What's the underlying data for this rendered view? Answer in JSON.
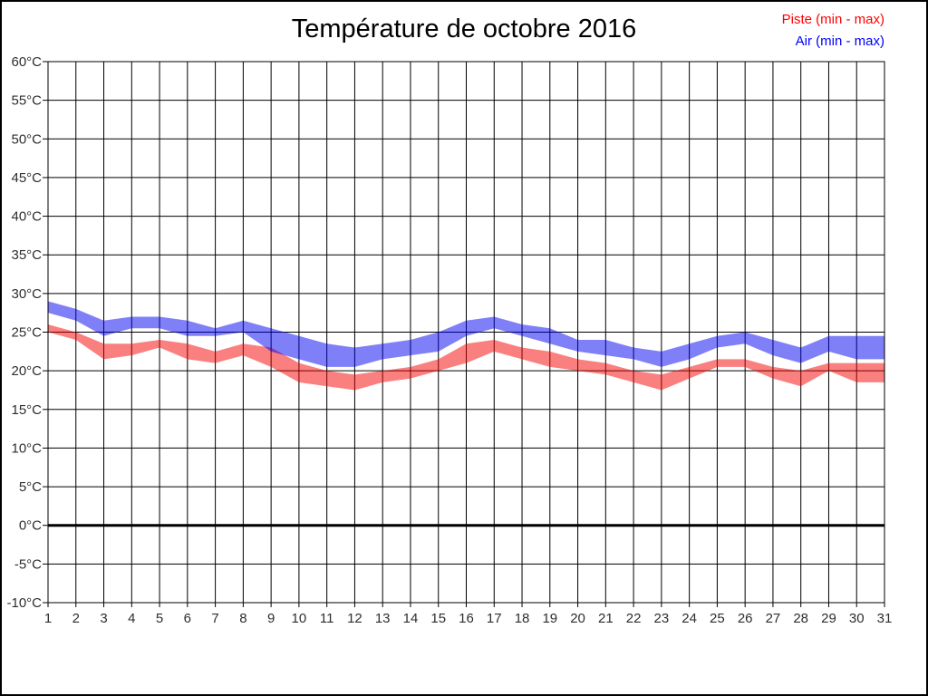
{
  "chart_data": {
    "type": "area",
    "subtype": "min-max-band",
    "title": "Température de octobre 2016",
    "legend": [
      {
        "label": "Piste (min - max)",
        "color": "#ff0000"
      },
      {
        "label": "Air (min - max)",
        "color": "#0000ff"
      }
    ],
    "xlabel": "",
    "ylabel": "",
    "x_tick_labels": [
      1,
      2,
      3,
      4,
      5,
      6,
      7,
      8,
      9,
      10,
      11,
      12,
      13,
      14,
      15,
      16,
      17,
      18,
      19,
      20,
      21,
      22,
      23,
      24,
      25,
      26,
      27,
      28,
      29,
      30,
      31
    ],
    "y_axis": {
      "min": -10,
      "max": 60,
      "step": 5,
      "unit": "°C",
      "bold_zero_line": true
    },
    "grid": true,
    "legend_position": "top-right",
    "series": [
      {
        "name": "Piste",
        "fill": "#f50000",
        "opacity": 0.5,
        "min": [
          25,
          24,
          21.5,
          22,
          23,
          21.5,
          21,
          22,
          20.5,
          18.5,
          18,
          17.5,
          18.5,
          19,
          20,
          21,
          22.5,
          21.5,
          20.5,
          20,
          19.5,
          18.5,
          17.5,
          19,
          20.5,
          20.5,
          19,
          18,
          20,
          18.5,
          18.5
        ],
        "max": [
          26,
          25,
          23.5,
          23.5,
          24,
          23.5,
          22.5,
          23.5,
          23,
          21,
          20,
          19.5,
          20,
          20.5,
          21.5,
          23.5,
          24,
          23,
          22.5,
          21.5,
          21,
          20,
          19.5,
          20.5,
          21.5,
          21.5,
          20.5,
          20,
          21,
          21,
          21
        ]
      },
      {
        "name": "Air",
        "fill": "#0000f0",
        "opacity": 0.5,
        "min": [
          27.5,
          26.5,
          24.5,
          25.5,
          25.5,
          24.5,
          24.5,
          25,
          22.5,
          21.5,
          20.5,
          20.5,
          21.5,
          22,
          22.5,
          24.5,
          25.5,
          24.5,
          23.5,
          22.5,
          22,
          21.5,
          20.5,
          21.5,
          23,
          23.5,
          22,
          21,
          22.5,
          21.5,
          21.5
        ],
        "max": [
          29,
          28,
          26.5,
          27,
          27,
          26.5,
          25.5,
          26.5,
          25.5,
          24.5,
          23.5,
          23,
          23.5,
          24,
          25,
          26.5,
          27,
          26,
          25.5,
          24,
          24,
          23,
          22.5,
          23.5,
          24.5,
          25,
          24,
          23,
          24.5,
          24.5,
          24.5
        ]
      }
    ]
  }
}
